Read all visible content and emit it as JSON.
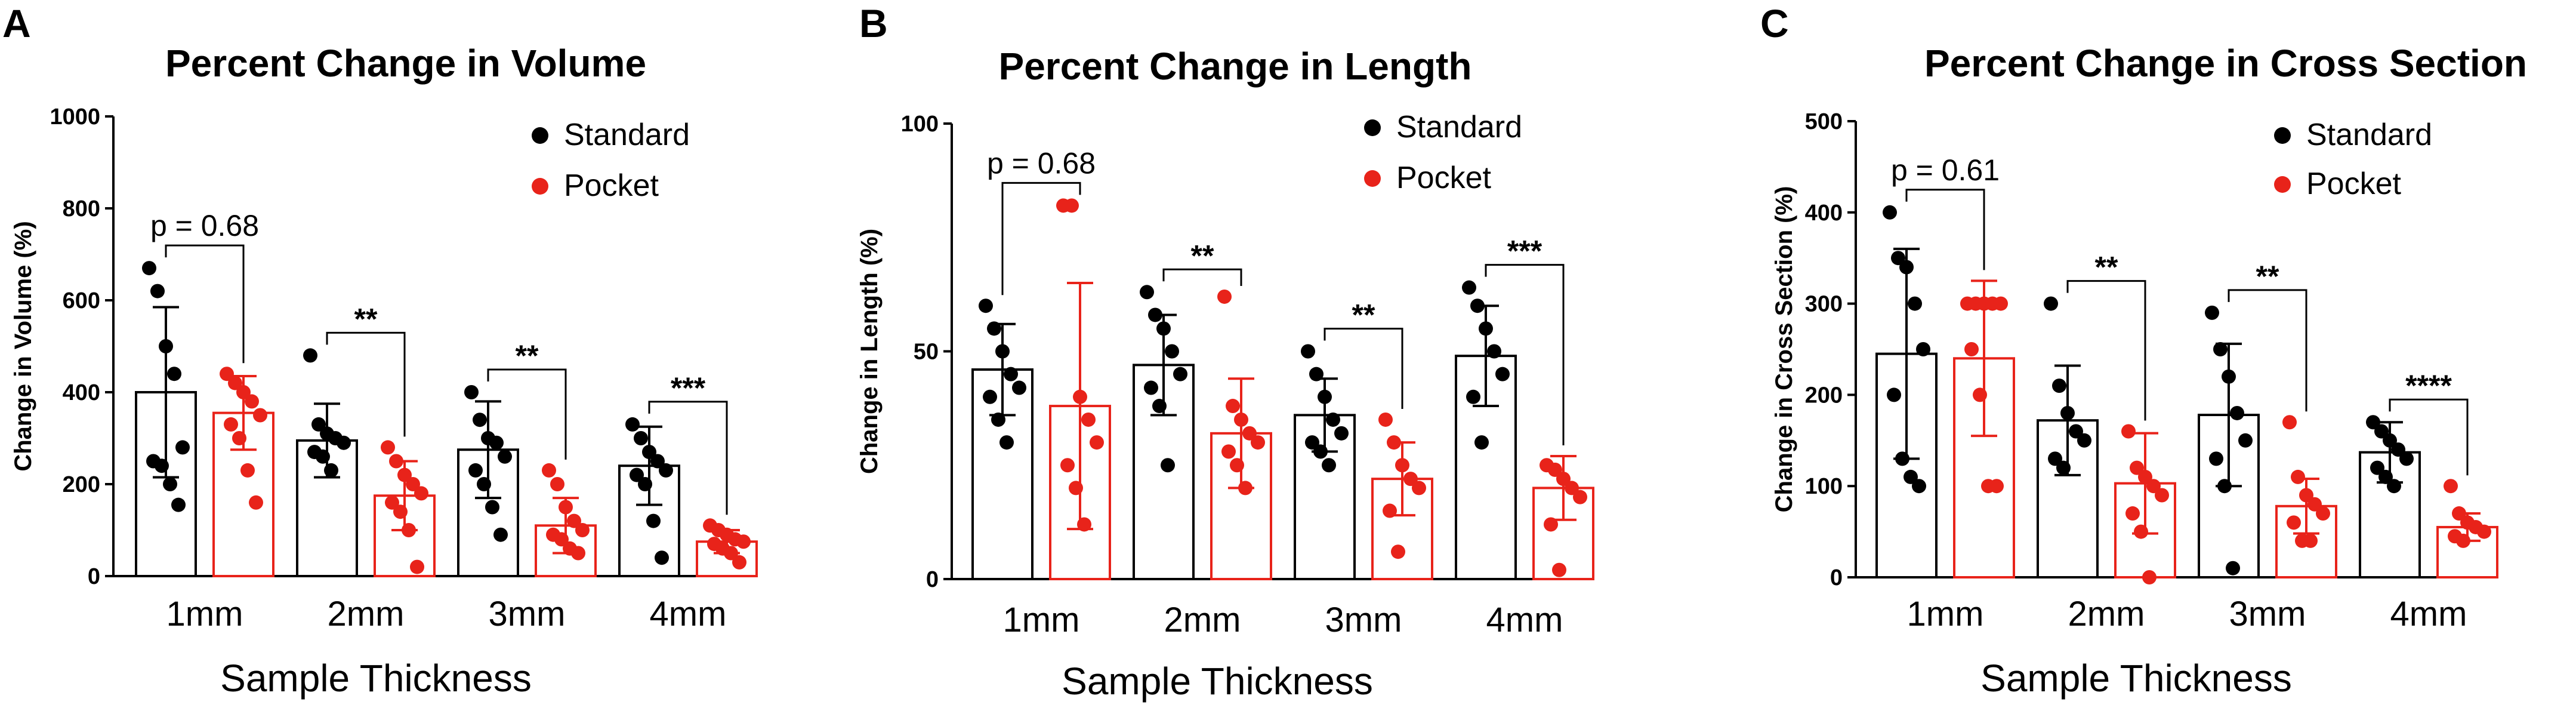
{
  "figure": {
    "colors": {
      "standard": "#000000",
      "pocket": "#e8231a"
    },
    "legend_placement": "top-right",
    "panels": [
      {
        "letter": "A",
        "chart_data": {
          "type": "bar",
          "title": "Percent Change in Volume",
          "xlabel": "Sample Thickness",
          "ylabel": "Change in Volume (%)",
          "ylim": [
            0,
            1000
          ],
          "yticks": [
            "0",
            "200",
            "400",
            "600",
            "800",
            "1000"
          ],
          "categories": [
            "1mm",
            "2mm",
            "3mm",
            "4mm"
          ],
          "series": [
            {
              "name": "Standard",
              "color": "#000000",
              "values": [
                400,
                295,
                275,
                240
              ],
              "sd": [
                185,
                80,
                105,
                85
              ],
              "points": [
                [
                  670,
                  620,
                  500,
                  440,
                  280,
                  250,
                  240,
                  200,
                  155
                ],
                [
                  480,
                  330,
                  310,
                  300,
                  290,
                  270,
                  260,
                  230
                ],
                [
                  400,
                  340,
                  300,
                  290,
                  260,
                  230,
                  200,
                  150,
                  90
                ],
                [
                  330,
                  300,
                  270,
                  250,
                  230,
                  220,
                  200,
                  120,
                  40
                ]
              ]
            },
            {
              "name": "Pocket",
              "color": "#e8231a",
              "values": [
                355,
                175,
                110,
                75
              ],
              "sd": [
                80,
                75,
                60,
                25
              ],
              "points": [
                [
                  440,
                  420,
                  400,
                  380,
                  350,
                  330,
                  300,
                  230,
                  160
                ],
                [
                  280,
                  250,
                  220,
                  200,
                  180,
                  160,
                  140,
                  100,
                  20
                ],
                [
                  230,
                  200,
                  150,
                  120,
                  100,
                  90,
                  80,
                  60,
                  50
                ],
                [
                  110,
                  100,
                  90,
                  80,
                  75,
                  70,
                  60,
                  50,
                  30
                ]
              ]
            }
          ],
          "annotations": [
            "p = 0.68",
            "**",
            "**",
            "***"
          ],
          "legend": "top-right",
          "grid": false
        }
      },
      {
        "letter": "B",
        "chart_data": {
          "type": "bar",
          "title": "Percent Change in Length",
          "xlabel": "Sample Thickness",
          "ylabel": "Change in Length (%)",
          "ylim": [
            0,
            100
          ],
          "yticks": [
            "0",
            "50",
            "100"
          ],
          "categories": [
            "1mm",
            "2mm",
            "3mm",
            "4mm"
          ],
          "series": [
            {
              "name": "Standard",
              "color": "#000000",
              "values": [
                46,
                47,
                36,
                49
              ],
              "sd": [
                10,
                11,
                8,
                11
              ],
              "points": [
                [
                  60,
                  55,
                  50,
                  45,
                  42,
                  40,
                  35,
                  30
                ],
                [
                  63,
                  58,
                  55,
                  50,
                  45,
                  42,
                  38,
                  25
                ],
                [
                  50,
                  45,
                  40,
                  35,
                  32,
                  30,
                  28,
                  25
                ],
                [
                  64,
                  60,
                  55,
                  50,
                  45,
                  40,
                  30
                ]
              ]
            },
            {
              "name": "Pocket",
              "color": "#e8231a",
              "values": [
                38,
                32,
                22,
                20
              ],
              "sd": [
                27,
                12,
                8,
                7
              ],
              "points": [
                [
                  82,
                  82,
                  40,
                  35,
                  30,
                  25,
                  20,
                  12
                ],
                [
                  62,
                  38,
                  35,
                  32,
                  30,
                  28,
                  25,
                  20
                ],
                [
                  35,
                  30,
                  25,
                  22,
                  20,
                  15,
                  6
                ],
                [
                  25,
                  24,
                  22,
                  20,
                  18,
                  12,
                  2
                ]
              ]
            }
          ],
          "annotations": [
            "p = 0.68",
            "**",
            "**",
            "***"
          ],
          "legend": "top-right",
          "grid": false
        }
      },
      {
        "letter": "C",
        "chart_data": {
          "type": "bar",
          "title": "Percent Change in Cross Section",
          "xlabel": "Sample Thickness",
          "ylabel": "Change in Cross Section (%)",
          "ylim": [
            0,
            500
          ],
          "yticks": [
            "0",
            "100",
            "200",
            "300",
            "400",
            "500"
          ],
          "categories": [
            "1mm",
            "2mm",
            "3mm",
            "4mm"
          ],
          "series": [
            {
              "name": "Standard",
              "color": "#000000",
              "values": [
                245,
                172,
                178,
                137
              ],
              "sd": [
                115,
                60,
                78,
                33
              ],
              "points": [
                [
                  400,
                  350,
                  340,
                  300,
                  250,
                  200,
                  130,
                  110,
                  100
                ],
                [
                  300,
                  210,
                  180,
                  160,
                  150,
                  130,
                  120
                ],
                [
                  290,
                  250,
                  220,
                  180,
                  150,
                  130,
                  100,
                  10
                ],
                [
                  170,
                  160,
                  150,
                  140,
                  130,
                  120,
                  110,
                  100
                ]
              ]
            },
            {
              "name": "Pocket",
              "color": "#e8231a",
              "values": [
                240,
                103,
                78,
                55
              ],
              "sd": [
                85,
                55,
                30,
                15
              ],
              "points": [
                [
                  300,
                  300,
                  300,
                  300,
                  300,
                  250,
                  200,
                  100,
                  100
                ],
                [
                  160,
                  120,
                  110,
                  100,
                  90,
                  70,
                  50,
                  0
                ],
                [
                  170,
                  110,
                  90,
                  80,
                  70,
                  60,
                  40,
                  40
                ],
                [
                  100,
                  70,
                  60,
                  55,
                  50,
                  45,
                  40
                ]
              ]
            }
          ],
          "annotations": [
            "p = 0.61",
            "**",
            "**",
            "****"
          ],
          "legend": "top-right",
          "grid": false
        }
      }
    ]
  }
}
